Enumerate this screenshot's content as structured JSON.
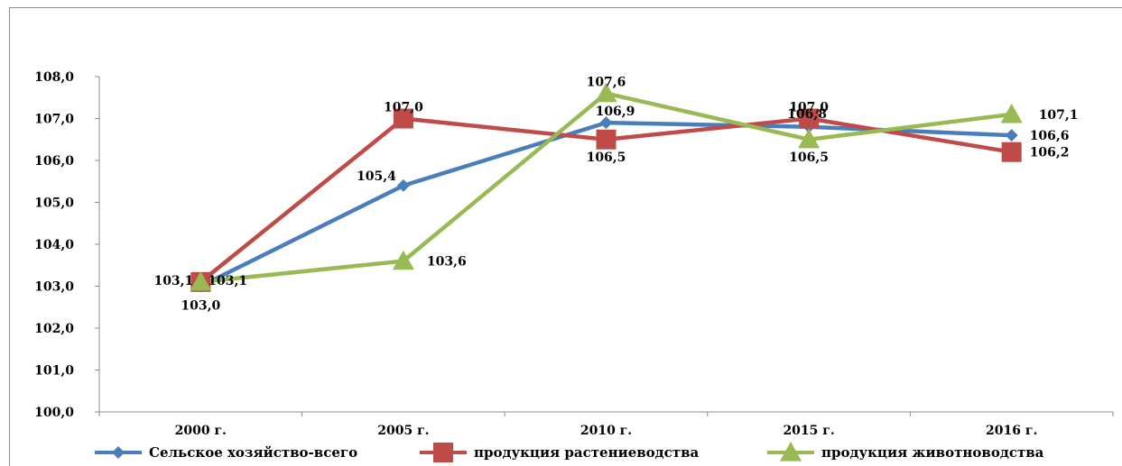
{
  "chart_data": {
    "type": "line",
    "categories": [
      "2000 г.",
      "2005 г.",
      "2010 г.",
      "2015 г.",
      "2016 г."
    ],
    "ylim": [
      100,
      108
    ],
    "yticks": [
      "100,0",
      "101,0",
      "102,0",
      "103,0",
      "104,0",
      "105,0",
      "106,0",
      "107,0",
      "108,0"
    ],
    "grid": false,
    "legend_position": "bottom",
    "series": [
      {
        "name": "Сельское хозяйство-всего",
        "values": [
          103.0,
          105.4,
          106.9,
          106.8,
          106.6
        ],
        "labels": [
          "103,0",
          "105,4",
          "106,9",
          "106,8",
          "106,6"
        ],
        "color": "#4a7ebb",
        "marker": "diamond"
      },
      {
        "name": "продукция растениеводства",
        "values": [
          103.1,
          107.0,
          106.5,
          107.0,
          106.2
        ],
        "labels": [
          "103,1",
          "107,0",
          "106,5",
          "107,0",
          "106,2"
        ],
        "color": "#be4b48",
        "marker": "square"
      },
      {
        "name": "продукция животноводства",
        "values": [
          103.1,
          103.6,
          107.6,
          106.5,
          107.1
        ],
        "labels": [
          "103,1",
          "103,6",
          "107,6",
          "106,5",
          "107,1"
        ],
        "color": "#98b954",
        "marker": "triangle"
      }
    ]
  }
}
